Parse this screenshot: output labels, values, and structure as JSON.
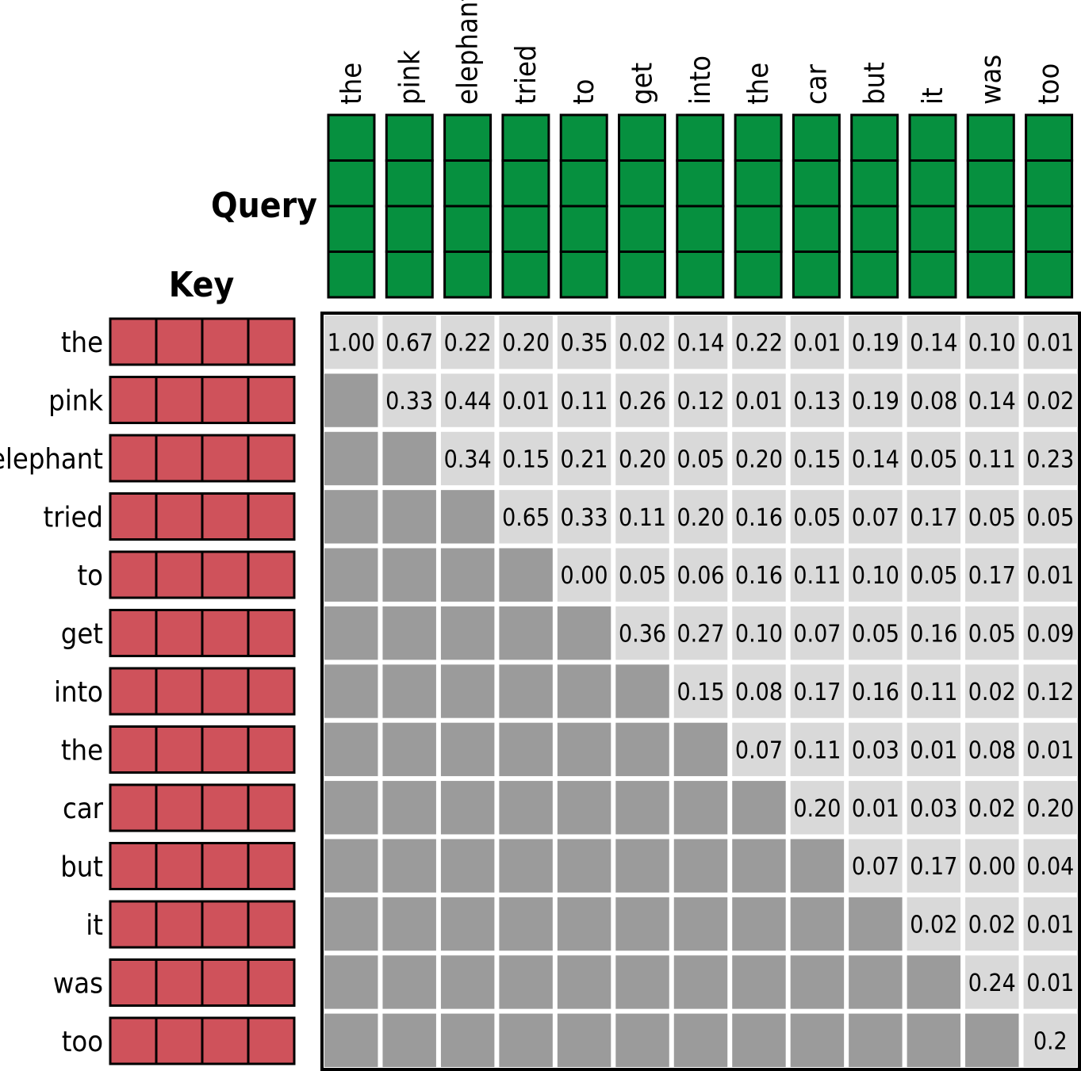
{
  "labels": {
    "query": "Query",
    "key": "Key"
  },
  "query_tokens": [
    "the",
    "pink",
    "elephant",
    "tried",
    "to",
    "get",
    "into",
    "the",
    "car",
    "but",
    "it",
    "was",
    "too"
  ],
  "key_tokens": [
    "the",
    "pink",
    "elephant",
    "tried",
    "to",
    "get",
    "into",
    "the",
    "car",
    "but",
    "it",
    "was",
    "too"
  ],
  "vector_cells": 4,
  "colors": {
    "query_fill": "#06903f",
    "key_fill": "#cf525b",
    "cell_visible": "#d9d9d9",
    "cell_masked": "#9b9b9b",
    "border": "#000000"
  },
  "matrix": [
    [
      "1.00",
      "0.67",
      "0.22",
      "0.20",
      "0.35",
      "0.02",
      "0.14",
      "0.22",
      "0.01",
      "0.19",
      "0.14",
      "0.10",
      "0.01"
    ],
    [
      null,
      "0.33",
      "0.44",
      "0.01",
      "0.11",
      "0.26",
      "0.12",
      "0.01",
      "0.13",
      "0.19",
      "0.08",
      "0.14",
      "0.02"
    ],
    [
      null,
      null,
      "0.34",
      "0.15",
      "0.21",
      "0.20",
      "0.05",
      "0.20",
      "0.15",
      "0.14",
      "0.05",
      "0.11",
      "0.23"
    ],
    [
      null,
      null,
      null,
      "0.65",
      "0.33",
      "0.11",
      "0.20",
      "0.16",
      "0.05",
      "0.07",
      "0.17",
      "0.05",
      "0.05"
    ],
    [
      null,
      null,
      null,
      null,
      "0.00",
      "0.05",
      "0.06",
      "0.16",
      "0.11",
      "0.10",
      "0.05",
      "0.17",
      "0.01"
    ],
    [
      null,
      null,
      null,
      null,
      null,
      "0.36",
      "0.27",
      "0.10",
      "0.07",
      "0.05",
      "0.16",
      "0.05",
      "0.09"
    ],
    [
      null,
      null,
      null,
      null,
      null,
      null,
      "0.15",
      "0.08",
      "0.17",
      "0.16",
      "0.11",
      "0.02",
      "0.12"
    ],
    [
      null,
      null,
      null,
      null,
      null,
      null,
      null,
      "0.07",
      "0.11",
      "0.03",
      "0.01",
      "0.08",
      "0.01"
    ],
    [
      null,
      null,
      null,
      null,
      null,
      null,
      null,
      null,
      "0.20",
      "0.01",
      "0.03",
      "0.02",
      "0.20"
    ],
    [
      null,
      null,
      null,
      null,
      null,
      null,
      null,
      null,
      null,
      "0.07",
      "0.17",
      "0.00",
      "0.04"
    ],
    [
      null,
      null,
      null,
      null,
      null,
      null,
      null,
      null,
      null,
      null,
      "0.02",
      "0.02",
      "0.01"
    ],
    [
      null,
      null,
      null,
      null,
      null,
      null,
      null,
      null,
      null,
      null,
      null,
      "0.24",
      "0.01"
    ],
    [
      null,
      null,
      null,
      null,
      null,
      null,
      null,
      null,
      null,
      null,
      null,
      null,
      "0.2"
    ]
  ]
}
